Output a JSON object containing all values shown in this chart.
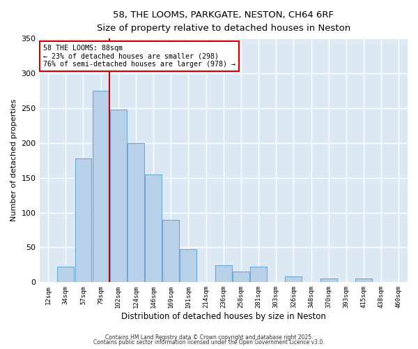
{
  "title": "58, THE LOOMS, PARKGATE, NESTON, CH64 6RF",
  "subtitle": "Size of property relative to detached houses in Neston",
  "xlabel": "Distribution of detached houses by size in Neston",
  "ylabel": "Number of detached properties",
  "bin_labels": [
    "12sqm",
    "34sqm",
    "57sqm",
    "79sqm",
    "102sqm",
    "124sqm",
    "146sqm",
    "169sqm",
    "191sqm",
    "214sqm",
    "236sqm",
    "258sqm",
    "281sqm",
    "303sqm",
    "326sqm",
    "348sqm",
    "370sqm",
    "393sqm",
    "415sqm",
    "438sqm",
    "460sqm"
  ],
  "bar_heights": [
    0,
    22,
    178,
    275,
    248,
    200,
    155,
    90,
    47,
    0,
    24,
    15,
    22,
    0,
    8,
    0,
    5,
    0,
    5,
    0,
    0
  ],
  "bar_color": "#b8d0e8",
  "bar_edge_color": "#6aaad4",
  "figure_bg": "#ffffff",
  "axes_bg": "#dce9f5",
  "grid_color": "#ffffff",
  "red_line_index": 3,
  "red_line_color": "#cc0000",
  "annotation_line1": "58 THE LOOMS: 88sqm",
  "annotation_line2": "← 23% of detached houses are smaller (298)",
  "annotation_line3": "76% of semi-detached houses are larger (978) →",
  "annotation_box_facecolor": "#ffffff",
  "annotation_box_edgecolor": "#cc0000",
  "ylim": [
    0,
    350
  ],
  "yticks": [
    0,
    50,
    100,
    150,
    200,
    250,
    300,
    350
  ],
  "footer1": "Contains HM Land Registry data © Crown copyright and database right 2025.",
  "footer2": "Contains public sector information licensed under the Open Government Licence v3.0."
}
